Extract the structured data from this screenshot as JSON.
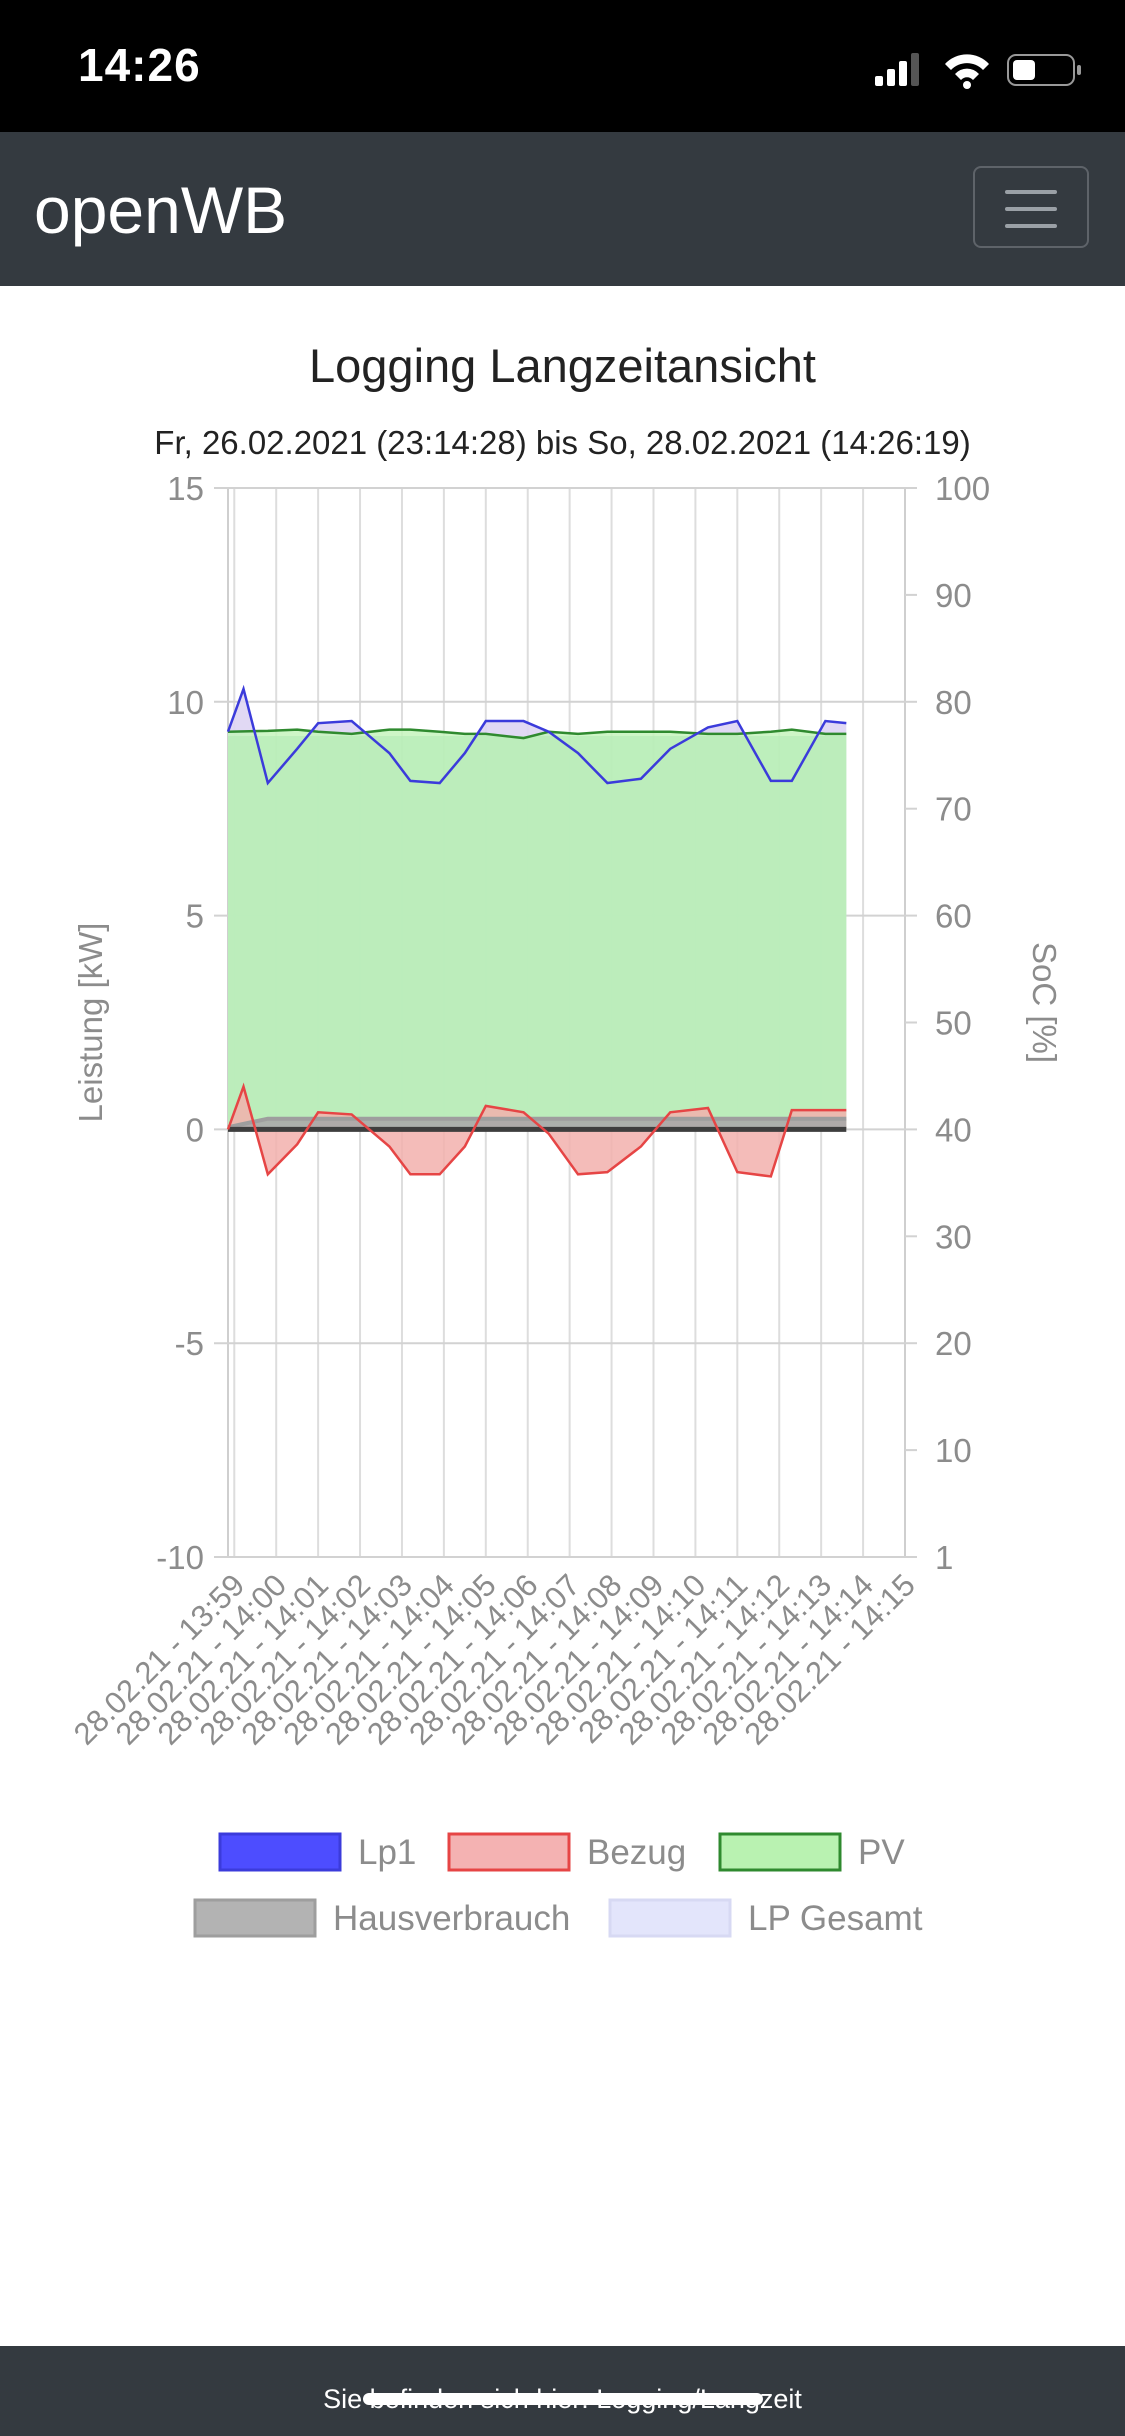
{
  "status_bar": {
    "time": "14:26"
  },
  "navbar": {
    "brand": "openWB",
    "menu_icon": "hamburger-menu-icon"
  },
  "page": {
    "title": "Logging Langzeitansicht",
    "subtitle": "Fr, 26.02.2021 (23:14:28) bis So, 28.02.2021 (14:26:19)"
  },
  "footer": {
    "text": "Sie befinden sich hier: Logging/Langzeit"
  },
  "chart_data": {
    "type": "area",
    "x": [
      "28.02.21 - 13:59",
      "28.02.21 - 14:00",
      "28.02.21 - 14:01",
      "28.02.21 - 14:02",
      "28.02.21 - 14:03",
      "28.02.21 - 14:04",
      "28.02.21 - 14:05",
      "28.02.21 - 14:06",
      "28.02.21 - 14:07",
      "28.02.21 - 14:08",
      "28.02.21 - 14:09",
      "28.02.21 - 14:10",
      "28.02.21 - 14:11",
      "28.02.21 - 14:12",
      "28.02.21 - 14:13",
      "28.02.21 - 14:14",
      "28.02.21 - 14:15"
    ],
    "xlabel": "",
    "ylabel": "Leistung [kW]",
    "y2label": "SoC [%]",
    "ylim": [
      -10,
      15
    ],
    "yticks": [
      -10,
      -5,
      0,
      5,
      10,
      15
    ],
    "y2ticks": [
      "1",
      "10",
      "20",
      "30",
      "40",
      "50",
      "60",
      "70",
      "80",
      "90",
      "100"
    ],
    "grid": true,
    "legend_position": "bottom",
    "series": [
      {
        "name": "Lp1",
        "color": "#3b3bdb",
        "fill": "#4d4dff",
        "x": [
          -0.15,
          0.22,
          0.8,
          1.5,
          2.0,
          2.8,
          3.7,
          4.2,
          4.9,
          5.5,
          6.0,
          6.9,
          7.5,
          8.2,
          8.9,
          9.7,
          10.4,
          11.3,
          12.0,
          12.8,
          13.3,
          14.1,
          14.6
        ],
        "values": [
          9.3,
          10.3,
          8.1,
          8.9,
          9.5,
          9.55,
          8.8,
          8.15,
          8.1,
          8.8,
          9.55,
          9.55,
          9.3,
          8.8,
          8.1,
          8.2,
          8.9,
          9.4,
          9.55,
          8.15,
          8.15,
          9.55,
          9.5
        ]
      },
      {
        "name": "Bezug",
        "color": "#e64545",
        "fill": "#f4b2b2",
        "x": [
          -0.15,
          0.22,
          0.8,
          1.5,
          2.0,
          2.8,
          3.7,
          4.2,
          4.9,
          5.5,
          6.0,
          6.9,
          7.5,
          8.2,
          8.9,
          9.7,
          10.4,
          11.3,
          12.0,
          12.8,
          13.3,
          14.1,
          14.6
        ],
        "values": [
          0.0,
          1.0,
          -1.05,
          -0.35,
          0.4,
          0.35,
          -0.4,
          -1.05,
          -1.05,
          -0.4,
          0.55,
          0.4,
          -0.1,
          -1.05,
          -1.0,
          -0.4,
          0.4,
          0.5,
          -1.0,
          -1.1,
          0.45,
          0.45,
          0.45
        ]
      },
      {
        "name": "PV",
        "color": "#2f8a2f",
        "fill": "#b9f2b1",
        "x": [
          -0.15,
          0.8,
          1.5,
          2.0,
          2.8,
          3.7,
          4.2,
          4.9,
          5.5,
          6.0,
          6.9,
          7.5,
          8.2,
          8.9,
          9.7,
          10.4,
          11.3,
          12.0,
          12.8,
          13.3,
          14.1,
          14.6
        ],
        "values": [
          9.3,
          9.32,
          9.35,
          9.3,
          9.25,
          9.35,
          9.35,
          9.3,
          9.25,
          9.25,
          9.15,
          9.3,
          9.25,
          9.3,
          9.3,
          9.3,
          9.25,
          9.25,
          9.3,
          9.35,
          9.25,
          9.25
        ]
      },
      {
        "name": "Hausverbrauch",
        "color": "#9e9e9e",
        "fill": "#b3b3b3",
        "x": [
          -0.15,
          0.8,
          14.6
        ],
        "values": [
          0.05,
          0.25,
          0.25
        ]
      },
      {
        "name": "LP Gesamt",
        "color": "#d7d9f3",
        "fill": "#e3e5fb",
        "x": [
          -0.15,
          14.6
        ],
        "values": [
          0,
          0
        ]
      }
    ]
  }
}
